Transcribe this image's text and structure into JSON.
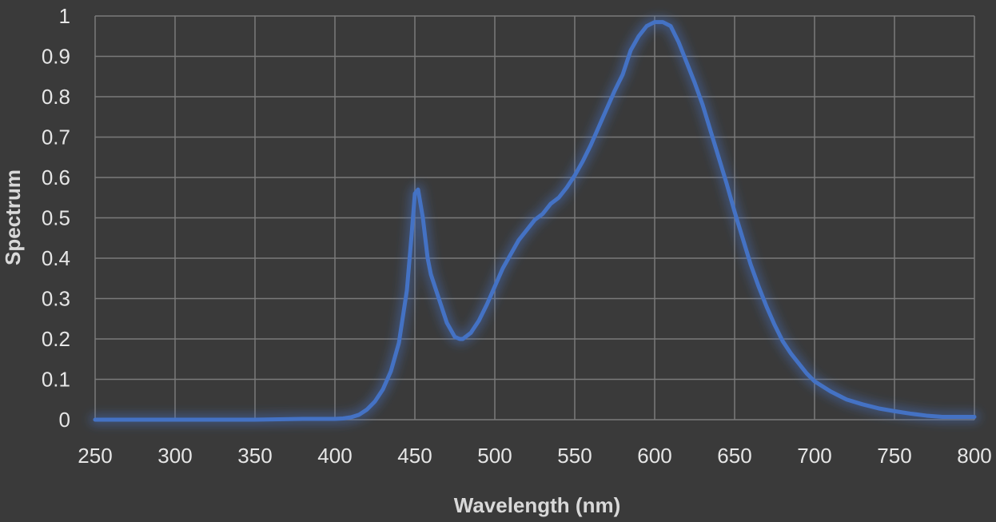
{
  "chart_data": {
    "type": "line",
    "title": "",
    "xlabel": "Wavelength (nm)",
    "ylabel": "Spectrum",
    "xlim": [
      250,
      800
    ],
    "ylim": [
      0,
      1
    ],
    "x_ticks": [
      "250",
      "300",
      "350",
      "400",
      "450",
      "500",
      "550",
      "600",
      "650",
      "700",
      "750",
      "800"
    ],
    "y_ticks": [
      "0",
      "0.1",
      "0.2",
      "0.3",
      "0.4",
      "0.5",
      "0.6",
      "0.7",
      "0.8",
      "0.9",
      "1"
    ],
    "grid": true,
    "legend": "none",
    "colors": {
      "background": "#3a3a3a",
      "grid": "#7a7a7a",
      "line": "#4472c4",
      "text": "#e6e6e6"
    },
    "series": [
      {
        "x": [
          250,
          300,
          350,
          380,
          400,
          405,
          410,
          415,
          420,
          425,
          430,
          435,
          440,
          445,
          448,
          450,
          452,
          455,
          458,
          460,
          465,
          470,
          475,
          478,
          480,
          485,
          490,
          495,
          500,
          505,
          510,
          515,
          520,
          525,
          530,
          535,
          540,
          545,
          550,
          555,
          560,
          565,
          570,
          575,
          580,
          585,
          590,
          595,
          600,
          605,
          610,
          615,
          620,
          625,
          630,
          635,
          640,
          645,
          650,
          655,
          660,
          665,
          670,
          675,
          680,
          685,
          690,
          695,
          700,
          710,
          720,
          730,
          740,
          750,
          760,
          770,
          780,
          790,
          800
        ],
        "y": [
          0,
          0,
          0,
          0.002,
          0.002,
          0.003,
          0.006,
          0.012,
          0.025,
          0.045,
          0.075,
          0.12,
          0.19,
          0.32,
          0.46,
          0.56,
          0.57,
          0.5,
          0.4,
          0.36,
          0.3,
          0.24,
          0.205,
          0.2,
          0.2,
          0.215,
          0.245,
          0.285,
          0.33,
          0.375,
          0.41,
          0.445,
          0.47,
          0.495,
          0.51,
          0.535,
          0.55,
          0.575,
          0.605,
          0.64,
          0.68,
          0.725,
          0.77,
          0.815,
          0.855,
          0.915,
          0.95,
          0.975,
          0.985,
          0.985,
          0.975,
          0.935,
          0.885,
          0.835,
          0.78,
          0.715,
          0.65,
          0.585,
          0.515,
          0.45,
          0.385,
          0.33,
          0.28,
          0.235,
          0.195,
          0.165,
          0.14,
          0.115,
          0.095,
          0.07,
          0.05,
          0.038,
          0.028,
          0.021,
          0.015,
          0.01,
          0.007,
          0.007,
          0.007
        ]
      }
    ]
  }
}
